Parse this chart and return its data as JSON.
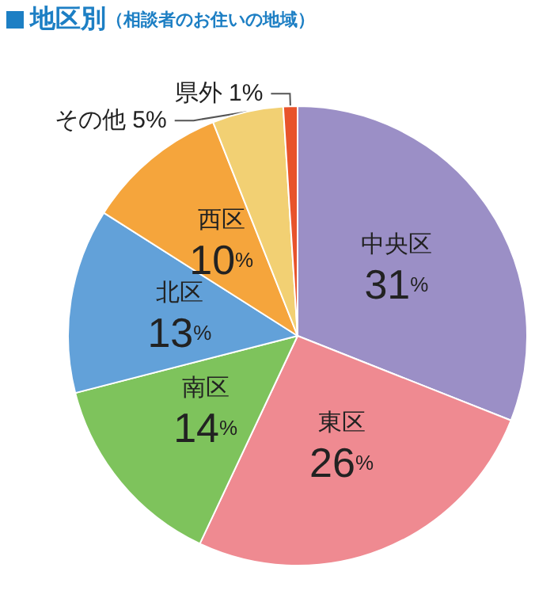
{
  "chart_data": {
    "type": "pie",
    "title": "地区別",
    "subtitle": "（相談者のお住いの地域）",
    "categories": [
      "中央区",
      "東区",
      "南区",
      "北区",
      "西区",
      "その他",
      "県外"
    ],
    "values": [
      31,
      26,
      14,
      13,
      10,
      5,
      1
    ],
    "value_labels": [
      "31%",
      "26%",
      "14%",
      "13%",
      "10%",
      "5%",
      "1%"
    ],
    "colors": [
      "#9b8fc6",
      "#ef8a91",
      "#7ec35c",
      "#62a1d9",
      "#f5a53c",
      "#f2d073",
      "#e8532b"
    ]
  }
}
